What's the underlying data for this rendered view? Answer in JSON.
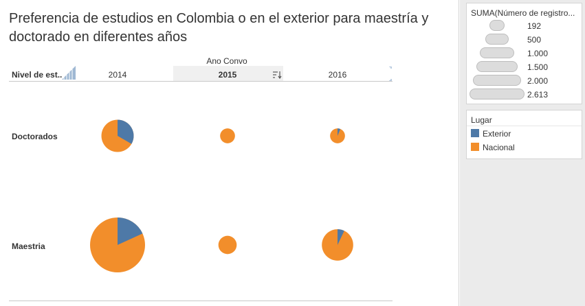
{
  "title": "Preferencia de estudios en Colombia o en el exterior para maestría y doctorado en diferentes años",
  "header": {
    "group_label": "Ano Convo",
    "row_field_label": "Nivel de est..",
    "columns": [
      "2014",
      "2015",
      "2016"
    ]
  },
  "rows": [
    "Doctorados",
    "Maestria"
  ],
  "size_legend": {
    "title": "SUMA(Número de registro...",
    "items": [
      "192",
      "500",
      "1.000",
      "1.500",
      "2.000",
      "2.613"
    ]
  },
  "color_legend": {
    "title": "Lugar",
    "items": [
      {
        "label": "Exterior",
        "color": "#4e79a7"
      },
      {
        "label": "Nacional",
        "color": "#f28e2b"
      }
    ]
  },
  "chart_data": {
    "type": "pie",
    "size_field": "SUMA(Número de registros)",
    "color_field": "Lugar",
    "column_field": "Ano Convo",
    "row_field": "Nivel de estudio",
    "size_legend_values": [
      192,
      500,
      1000,
      1500,
      2000,
      2613
    ],
    "columns": [
      "2014",
      "2015",
      "2016"
    ],
    "rows": [
      "Doctorados",
      "Maestria"
    ],
    "series": [
      "Exterior",
      "Nacional"
    ],
    "cells": [
      {
        "row": "Doctorados",
        "column": "2014",
        "total": 900,
        "exterior": 300,
        "nacional": 600
      },
      {
        "row": "Doctorados",
        "column": "2015",
        "total": 192,
        "exterior": 0,
        "nacional": 192
      },
      {
        "row": "Doctorados",
        "column": "2016",
        "total": 192,
        "exterior": 12,
        "nacional": 180
      },
      {
        "row": "Maestria",
        "column": "2014",
        "total": 2613,
        "exterior": 475,
        "nacional": 2138
      },
      {
        "row": "Maestria",
        "column": "2015",
        "total": 290,
        "exterior": 0,
        "nacional": 290
      },
      {
        "row": "Maestria",
        "column": "2016",
        "total": 850,
        "exterior": 60,
        "nacional": 790
      }
    ]
  }
}
